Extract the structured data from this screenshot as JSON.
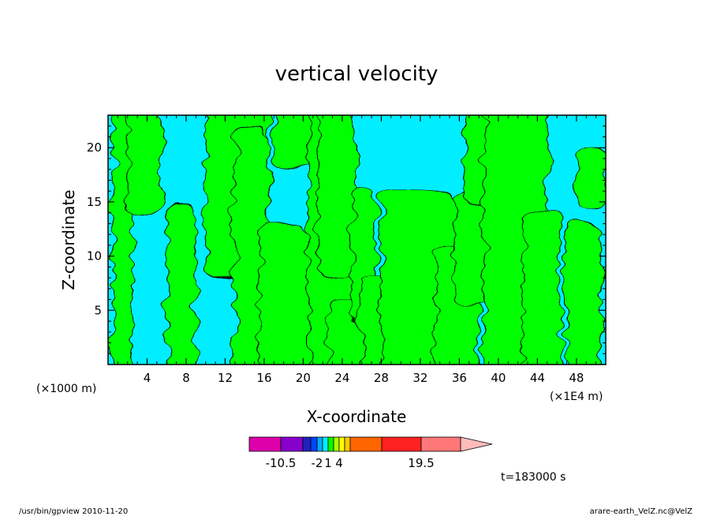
{
  "chart_data": {
    "type": "contour",
    "title": "vertical velocity",
    "xlabel": "X-coordinate",
    "ylabel": "Z-coordinate",
    "x_unit_left": "(×1000 m)",
    "x_unit_right": "(×1E4 m)",
    "xlim": [
      0,
      51
    ],
    "ylim": [
      0,
      23
    ],
    "x_ticks": [
      4,
      8,
      12,
      16,
      20,
      24,
      28,
      32,
      36,
      40,
      44,
      48
    ],
    "y_ticks": [
      5,
      10,
      15,
      20
    ],
    "colors": {
      "positive": "#00ff00",
      "negative": "#00eeff",
      "frame": "#000000"
    },
    "updrafts": [
      {
        "x": [
          0.5,
          2.5
        ],
        "z": [
          0,
          23
        ]
      },
      {
        "x": [
          2.0,
          5.5
        ],
        "z": [
          14,
          23
        ]
      },
      {
        "x": [
          6.0,
          9.0
        ],
        "z": [
          0,
          15
        ]
      },
      {
        "x": [
          10.0,
          16.5
        ],
        "z": [
          8,
          23
        ]
      },
      {
        "x": [
          13.0,
          16.5
        ],
        "z": [
          0,
          22
        ]
      },
      {
        "x": [
          15.5,
          20.5
        ],
        "z": [
          0,
          13
        ]
      },
      {
        "x": [
          17.0,
          22.0
        ],
        "z": [
          18,
          23
        ]
      },
      {
        "x": [
          20.5,
          25.0
        ],
        "z": [
          0,
          23
        ]
      },
      {
        "x": [
          22.5,
          26.0
        ],
        "z": [
          0,
          6
        ]
      },
      {
        "x": [
          21.5,
          25.5
        ],
        "z": [
          8,
          23
        ]
      },
      {
        "x": [
          25.0,
          27.5
        ],
        "z": [
          4,
          16
        ]
      },
      {
        "x": [
          26.0,
          32.0
        ],
        "z": [
          0,
          8
        ]
      },
      {
        "x": [
          28.0,
          35.5
        ],
        "z": [
          0,
          16
        ]
      },
      {
        "x": [
          33.5,
          38.0
        ],
        "z": [
          0,
          11
        ]
      },
      {
        "x": [
          35.5,
          39.5
        ],
        "z": [
          5,
          16
        ]
      },
      {
        "x": [
          36.5,
          43.5
        ],
        "z": [
          15,
          23
        ]
      },
      {
        "x": [
          38.5,
          45.0
        ],
        "z": [
          0,
          23
        ]
      },
      {
        "x": [
          42.5,
          46.5
        ],
        "z": [
          0,
          14
        ]
      },
      {
        "x": [
          47.0,
          50.5
        ],
        "z": [
          0,
          13
        ]
      },
      {
        "x": [
          48.0,
          51.0
        ],
        "z": [
          14,
          20
        ]
      }
    ],
    "colorbar": {
      "segments": [
        {
          "color": "#dd00aa"
        },
        {
          "color": "#8800cc"
        },
        {
          "color": "#2222bb"
        },
        {
          "color": "#0044ff"
        },
        {
          "color": "#00aaff"
        },
        {
          "color": "#00eeff"
        },
        {
          "color": "#00ff00"
        },
        {
          "color": "#aaff00"
        },
        {
          "color": "#ffff00"
        },
        {
          "color": "#ffcc00"
        },
        {
          "color": "#ff6600"
        },
        {
          "color": "#ff2222"
        },
        {
          "color": "#ff7777"
        }
      ],
      "arrow_color": "#ffbbbb",
      "labels": [
        "-10.5",
        "-2",
        "1",
        "4",
        "19.5"
      ]
    },
    "time_label": "t=183000 s",
    "footer_left": "/usr/bin/gpview   2010-11-20",
    "footer_right": "arare-earth_VelZ.nc@VelZ"
  }
}
